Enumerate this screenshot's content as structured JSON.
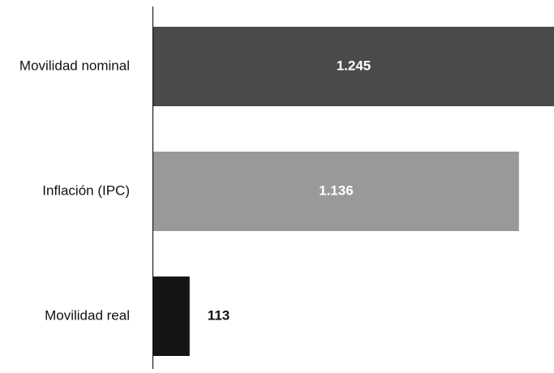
{
  "chart_data": {
    "type": "bar",
    "orientation": "horizontal",
    "title": "",
    "xlabel": "",
    "ylabel": "",
    "categories": [
      "Movilidad nominal",
      "Inflación (IPC)",
      "Movilidad real"
    ],
    "values": [
      1245,
      1136,
      113
    ],
    "value_labels": [
      "1.245",
      "1.136",
      "113"
    ],
    "bar_colors": [
      "#4a4a4a",
      "#999999",
      "#151515"
    ],
    "value_label_colors": [
      "#ffffff",
      "#ffffff",
      "#111111"
    ],
    "xlim": [
      0,
      1245
    ],
    "grid": false,
    "legend": "none"
  }
}
